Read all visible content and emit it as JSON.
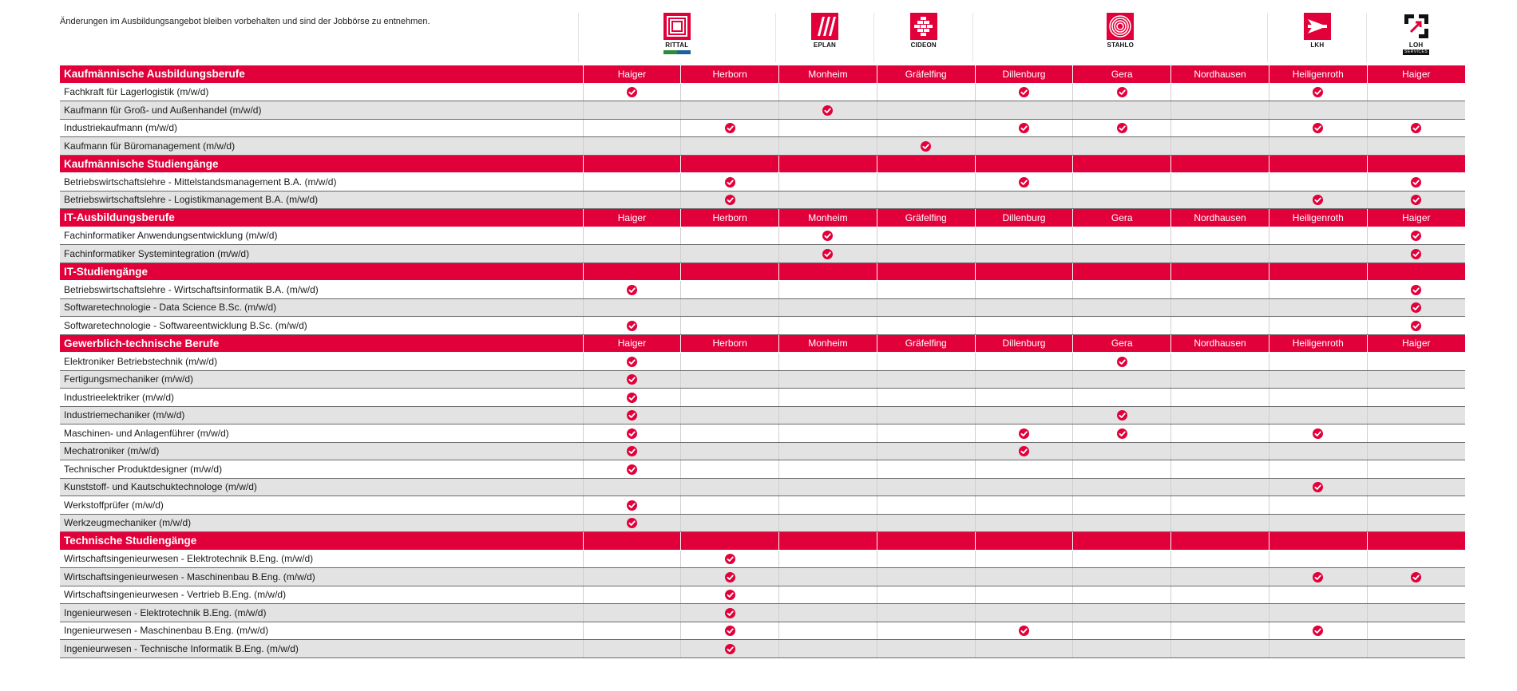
{
  "note": "Änderungen im Ausbildungsangebot bleiben vorbehalten und sind der Jobbörse zu entnehmen.",
  "logos": [
    {
      "name": "rittal-logo",
      "text": "RITTAL",
      "color": "#e2003a"
    },
    {
      "name": "eplan-logo",
      "text": "EPLAN",
      "color": "#e2003a"
    },
    {
      "name": "cideon-logo",
      "text": "CIDEON",
      "color": "#e2003a"
    },
    {
      "name": "stahlo-logo",
      "text": "STAHLO",
      "color": "#e2003a"
    },
    {
      "name": "lkh-logo",
      "text": "LKH",
      "color": "#e2003a"
    },
    {
      "name": "loh-services-logo",
      "text": "LOH",
      "subtext": "SERVICES",
      "color": "#111111"
    }
  ],
  "accent_color": "#e2003a",
  "sections": [
    {
      "title": "Kaufmännische Ausbildungsberufe",
      "locations": [
        "Haiger",
        "Herborn",
        "Monheim",
        "Gräfelfing",
        "Dillenburg",
        "Gera",
        "Nordhausen",
        "Heiligenroth",
        "Haiger"
      ],
      "rows": [
        {
          "label": "Fachkraft für Lagerlogistik (m/w/d)",
          "checks": [
            1,
            0,
            0,
            0,
            1,
            1,
            0,
            1,
            0
          ]
        },
        {
          "label": "Kaufmann für Groß- und Außenhandel (m/w/d)",
          "checks": [
            0,
            0,
            1,
            0,
            0,
            0,
            0,
            0,
            0
          ]
        },
        {
          "label": "Industriekaufmann (m/w/d)",
          "checks": [
            0,
            1,
            0,
            0,
            1,
            1,
            0,
            1,
            1
          ]
        },
        {
          "label": "Kaufmann für Büromanagement (m/w/d)",
          "checks": [
            0,
            0,
            0,
            1,
            0,
            0,
            0,
            0,
            0
          ]
        }
      ]
    },
    {
      "title": "Kaufmännische Studiengänge",
      "locations": [],
      "rows": [
        {
          "label": "Betriebswirtschaftslehre - Mittelstandsmanagement B.A. (m/w/d)",
          "checks": [
            0,
            1,
            0,
            0,
            1,
            0,
            0,
            0,
            1
          ]
        },
        {
          "label": "Betriebswirtschaftslehre - Logistikmanagement B.A. (m/w/d)",
          "checks": [
            0,
            1,
            0,
            0,
            0,
            0,
            0,
            1,
            1
          ]
        }
      ]
    },
    {
      "title": "IT-Ausbildungsberufe",
      "locations": [
        "Haiger",
        "Herborn",
        "Monheim",
        "Gräfelfing",
        "Dillenburg",
        "Gera",
        "Nordhausen",
        "Heiligenroth",
        "Haiger"
      ],
      "rows": [
        {
          "label": "Fachinformatiker Anwendungsentwicklung (m/w/d)",
          "checks": [
            0,
            0,
            1,
            0,
            0,
            0,
            0,
            0,
            1
          ]
        },
        {
          "label": "Fachinformatiker Systemintegration (m/w/d)",
          "checks": [
            0,
            0,
            1,
            0,
            0,
            0,
            0,
            0,
            1
          ]
        }
      ]
    },
    {
      "title": "IT-Studiengänge",
      "locations": [],
      "rows": [
        {
          "label": "Betriebswirtschaftslehre - Wirtschaftsinformatik B.A. (m/w/d)",
          "checks": [
            1,
            0,
            0,
            0,
            0,
            0,
            0,
            0,
            1
          ]
        },
        {
          "label": "Softwaretechnologie - Data Science B.Sc. (m/w/d)",
          "checks": [
            0,
            0,
            0,
            0,
            0,
            0,
            0,
            0,
            1
          ]
        },
        {
          "label": "Softwaretechnologie - Softwareentwicklung B.Sc. (m/w/d)",
          "checks": [
            1,
            0,
            0,
            0,
            0,
            0,
            0,
            0,
            1
          ]
        }
      ]
    },
    {
      "title": "Gewerblich-technische Berufe",
      "locations": [
        "Haiger",
        "Herborn",
        "Monheim",
        "Gräfelfing",
        "Dillenburg",
        "Gera",
        "Nordhausen",
        "Heiligenroth",
        "Haiger"
      ],
      "rows": [
        {
          "label": "Elektroniker Betriebstechnik (m/w/d)",
          "checks": [
            1,
            0,
            0,
            0,
            0,
            1,
            0,
            0,
            0
          ]
        },
        {
          "label": "Fertigungsmechaniker (m/w/d)",
          "checks": [
            1,
            0,
            0,
            0,
            0,
            0,
            0,
            0,
            0
          ]
        },
        {
          "label": "Industrieelektriker (m/w/d)",
          "checks": [
            1,
            0,
            0,
            0,
            0,
            0,
            0,
            0,
            0
          ]
        },
        {
          "label": "Industriemechaniker (m/w/d)",
          "checks": [
            1,
            0,
            0,
            0,
            0,
            1,
            0,
            0,
            0
          ]
        },
        {
          "label": "Maschinen- und Anlagenführer (m/w/d)",
          "checks": [
            1,
            0,
            0,
            0,
            1,
            1,
            0,
            1,
            0
          ]
        },
        {
          "label": "Mechatroniker (m/w/d)",
          "checks": [
            1,
            0,
            0,
            0,
            1,
            0,
            0,
            0,
            0
          ]
        },
        {
          "label": "Technischer Produktdesigner (m/w/d)",
          "checks": [
            1,
            0,
            0,
            0,
            0,
            0,
            0,
            0,
            0
          ]
        },
        {
          "label": "Kunststoff- und Kautschuktechnologe (m/w/d)",
          "checks": [
            0,
            0,
            0,
            0,
            0,
            0,
            0,
            1,
            0
          ]
        },
        {
          "label": "Werkstoffprüfer (m/w/d)",
          "checks": [
            1,
            0,
            0,
            0,
            0,
            0,
            0,
            0,
            0
          ]
        },
        {
          "label": "Werkzeugmechaniker (m/w/d)",
          "checks": [
            1,
            0,
            0,
            0,
            0,
            0,
            0,
            0,
            0
          ]
        }
      ]
    },
    {
      "title": "Technische Studiengänge",
      "locations": [],
      "rows": [
        {
          "label": "Wirtschaftsingenieurwesen - Elektrotechnik B.Eng. (m/w/d)",
          "checks": [
            0,
            1,
            0,
            0,
            0,
            0,
            0,
            0,
            0
          ]
        },
        {
          "label": "Wirtschaftsingenieurwesen - Maschinenbau B.Eng. (m/w/d)",
          "checks": [
            0,
            1,
            0,
            0,
            0,
            0,
            0,
            1,
            1
          ]
        },
        {
          "label": "Wirtschaftsingenieurwesen - Vertrieb B.Eng. (m/w/d)",
          "checks": [
            0,
            1,
            0,
            0,
            0,
            0,
            0,
            0,
            0
          ]
        },
        {
          "label": "Ingenieurwesen - Elektrotechnik B.Eng. (m/w/d)",
          "checks": [
            0,
            1,
            0,
            0,
            0,
            0,
            0,
            0,
            0
          ]
        },
        {
          "label": "Ingenieurwesen - Maschinenbau B.Eng. (m/w/d)",
          "checks": [
            0,
            1,
            0,
            0,
            1,
            0,
            0,
            1,
            0
          ]
        },
        {
          "label": "Ingenieurwesen - Technische Informatik B.Eng. (m/w/d)",
          "checks": [
            0,
            1,
            0,
            0,
            0,
            0,
            0,
            0,
            0
          ]
        }
      ]
    }
  ]
}
